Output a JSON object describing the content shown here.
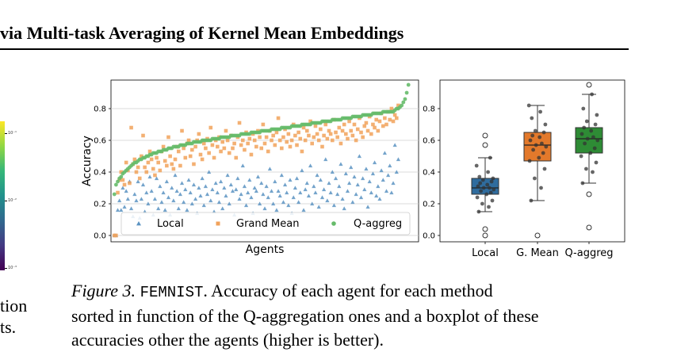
{
  "header": {
    "running_title": "via Multi-task Averaging of Kernel Mean Embeddings"
  },
  "left_column": {
    "colorbar_ticks": [
      "10⁻¹",
      "10⁻²",
      "10⁻³"
    ],
    "text_fragments": [
      "tion",
      "ts."
    ]
  },
  "colors": {
    "local": "#5b93c2",
    "grand_mean": "#f1a25b",
    "q_aggreg": "#66bb6a",
    "box_local": "#2f6c9e",
    "box_grand_mean": "#e3792b",
    "box_q_aggreg": "#2e8b35"
  },
  "caption": {
    "label": "Figure 3.",
    "dataset": "FEMNIST",
    "line1_rest": ". Accuracy of each agent for each method",
    "line2": "sorted in function of the Q-aggregation ones and a boxplot of these",
    "line3": "accuracies other the agents (higher is better)."
  },
  "chart_data": [
    {
      "type": "scatter",
      "title": "",
      "xlabel": "Agents",
      "ylabel": "Accuracy",
      "ylim": [
        -0.04,
        0.98
      ],
      "xlim": [
        -2,
        180
      ],
      "yticks": [
        "0.0",
        "0.2",
        "0.4",
        "0.6",
        "0.8"
      ],
      "ytick_values": [
        0.0,
        0.2,
        0.4,
        0.6,
        0.8
      ],
      "grid": "horizontal",
      "legend_position": "bottom",
      "series": [
        {
          "name": "Local",
          "marker": "triangle",
          "values": [
            0.0,
            0.0,
            0.16,
            0.22,
            0.16,
            0.3,
            0.18,
            0.28,
            0.23,
            0.34,
            0.17,
            0.12,
            0.26,
            0.22,
            0.34,
            0.11,
            0.23,
            0.32,
            0.15,
            0.27,
            0.2,
            0.37,
            0.28,
            0.13,
            0.23,
            0.36,
            0.17,
            0.31,
            0.21,
            0.27,
            0.16,
            0.34,
            0.24,
            0.13,
            0.3,
            0.22,
            0.38,
            0.28,
            0.17,
            0.26,
            0.33,
            0.21,
            0.29,
            0.16,
            0.35,
            0.27,
            0.2,
            0.32,
            0.23,
            0.14,
            0.3,
            0.25,
            0.36,
            0.19,
            0.31,
            0.26,
            0.4,
            0.22,
            0.29,
            0.15,
            0.33,
            0.27,
            0.21,
            0.34,
            0.17,
            0.3,
            0.25,
            0.38,
            0.2,
            0.32,
            0.28,
            0.13,
            0.29,
            0.36,
            0.23,
            0.26,
            0.44,
            0.31,
            0.19,
            0.27,
            0.35,
            0.24,
            0.14,
            0.3,
            0.28,
            0.37,
            0.2,
            0.33,
            0.26,
            0.17,
            0.31,
            0.24,
            0.42,
            0.28,
            0.2,
            0.34,
            0.16,
            0.28,
            0.25,
            0.38,
            0.21,
            0.32,
            0.27,
            0.19,
            0.35,
            0.14,
            0.24,
            0.3,
            0.36,
            0.21,
            0.27,
            0.41,
            0.16,
            0.29,
            0.33,
            0.25,
            0.44,
            0.2,
            0.31,
            0.27,
            0.38,
            0.18,
            0.35,
            0.24,
            0.29,
            0.48,
            0.22,
            0.33,
            0.27,
            0.4,
            0.19,
            0.36,
            0.26,
            0.31,
            0.45,
            0.23,
            0.17,
            0.39,
            0.28,
            0.33,
            0.43,
            0.21,
            0.37,
            0.26,
            0.32,
            0.5,
            0.24,
            0.36,
            0.29,
            0.42,
            0.18,
            0.34,
            0.27,
            0.39,
            0.46,
            0.25,
            0.31,
            0.23,
            0.41,
            0.35,
            0.52,
            0.28,
            0.38,
            0.44,
            0.27,
            0.33,
            0.57,
            0.4,
            0.48
          ]
        },
        {
          "name": "Grand Mean",
          "marker": "square",
          "values": [
            0.0,
            0.0,
            0.27,
            0.35,
            0.4,
            0.35,
            0.32,
            0.46,
            0.41,
            0.33,
            0.68,
            0.45,
            0.48,
            0.4,
            0.43,
            0.36,
            0.5,
            0.63,
            0.43,
            0.4,
            0.46,
            0.53,
            0.48,
            0.42,
            0.38,
            0.49,
            0.46,
            0.41,
            0.53,
            0.56,
            0.47,
            0.44,
            0.62,
            0.5,
            0.45,
            0.42,
            0.48,
            0.56,
            0.53,
            0.44,
            0.66,
            0.55,
            0.49,
            0.58,
            0.6,
            0.5,
            0.54,
            0.45,
            0.56,
            0.6,
            0.64,
            0.51,
            0.48,
            0.58,
            0.55,
            0.61,
            0.52,
            0.68,
            0.57,
            0.49,
            0.6,
            0.56,
            0.62,
            0.53,
            0.59,
            0.55,
            0.66,
            0.6,
            0.52,
            0.63,
            0.55,
            0.58,
            0.49,
            0.62,
            0.71,
            0.57,
            0.6,
            0.54,
            0.65,
            0.58,
            0.61,
            0.51,
            0.64,
            0.6,
            0.56,
            0.66,
            0.62,
            0.55,
            0.7,
            0.58,
            0.62,
            0.53,
            0.66,
            0.6,
            0.63,
            0.57,
            0.65,
            0.74,
            0.6,
            0.55,
            0.62,
            0.67,
            0.59,
            0.64,
            0.56,
            0.6,
            0.7,
            0.63,
            0.57,
            0.65,
            0.61,
            0.53,
            0.68,
            0.6,
            0.66,
            0.63,
            0.72,
            0.58,
            0.62,
            0.69,
            0.64,
            0.6,
            0.67,
            0.56,
            0.63,
            0.7,
            0.61,
            0.66,
            0.64,
            0.6,
            0.73,
            0.65,
            0.62,
            0.68,
            0.58,
            0.66,
            0.7,
            0.64,
            0.61,
            0.72,
            0.66,
            0.63,
            0.7,
            0.6,
            0.67,
            0.74,
            0.65,
            0.62,
            0.69,
            0.71,
            0.66,
            0.75,
            0.64,
            0.7,
            0.68,
            0.73,
            0.66,
            0.72,
            0.77,
            0.69,
            0.74,
            0.7,
            0.78,
            0.73,
            0.8,
            0.72,
            0.76,
            0.74,
            0.82
          ]
        },
        {
          "name": "Q-aggreg",
          "marker": "circle",
          "values": [
            0.26,
            0.32,
            0.34,
            0.36,
            0.37,
            0.39,
            0.4,
            0.41,
            0.42,
            0.43,
            0.44,
            0.45,
            0.46,
            0.46,
            0.47,
            0.48,
            0.48,
            0.49,
            0.49,
            0.5,
            0.5,
            0.51,
            0.51,
            0.52,
            0.52,
            0.52,
            0.53,
            0.53,
            0.53,
            0.54,
            0.54,
            0.54,
            0.55,
            0.55,
            0.55,
            0.56,
            0.56,
            0.56,
            0.56,
            0.57,
            0.57,
            0.57,
            0.57,
            0.58,
            0.58,
            0.58,
            0.58,
            0.59,
            0.59,
            0.59,
            0.59,
            0.59,
            0.6,
            0.6,
            0.6,
            0.6,
            0.6,
            0.6,
            0.61,
            0.61,
            0.61,
            0.61,
            0.61,
            0.62,
            0.62,
            0.62,
            0.62,
            0.62,
            0.62,
            0.63,
            0.63,
            0.63,
            0.63,
            0.63,
            0.63,
            0.64,
            0.64,
            0.64,
            0.64,
            0.64,
            0.64,
            0.65,
            0.65,
            0.65,
            0.65,
            0.65,
            0.65,
            0.66,
            0.66,
            0.66,
            0.66,
            0.66,
            0.66,
            0.67,
            0.67,
            0.67,
            0.67,
            0.67,
            0.67,
            0.68,
            0.68,
            0.68,
            0.68,
            0.68,
            0.68,
            0.69,
            0.69,
            0.69,
            0.69,
            0.69,
            0.69,
            0.7,
            0.7,
            0.7,
            0.7,
            0.7,
            0.7,
            0.71,
            0.71,
            0.71,
            0.71,
            0.71,
            0.71,
            0.72,
            0.72,
            0.72,
            0.72,
            0.72,
            0.72,
            0.73,
            0.73,
            0.73,
            0.73,
            0.73,
            0.73,
            0.74,
            0.74,
            0.74,
            0.74,
            0.74,
            0.74,
            0.75,
            0.75,
            0.75,
            0.75,
            0.75,
            0.75,
            0.76,
            0.76,
            0.76,
            0.76,
            0.76,
            0.76,
            0.77,
            0.77,
            0.77,
            0.77,
            0.77,
            0.77,
            0.78,
            0.78,
            0.78,
            0.78,
            0.78,
            0.78,
            0.78,
            0.79,
            0.8,
            0.8,
            0.81,
            0.82,
            0.84,
            0.86,
            0.9,
            0.95
          ]
        }
      ]
    },
    {
      "type": "box",
      "title": "",
      "xlabel": "",
      "ylabel": "",
      "ylim": [
        -0.04,
        0.98
      ],
      "yticks": [
        "0.0",
        "0.2",
        "0.4",
        "0.6",
        "0.8"
      ],
      "ytick_values": [
        0.0,
        0.2,
        0.4,
        0.6,
        0.8
      ],
      "categories": [
        "Local",
        "G. Mean",
        "Q-aggreg"
      ],
      "boxes": [
        {
          "whisker_low": 0.15,
          "q1": 0.26,
          "median": 0.3,
          "q3": 0.36,
          "whisker_high": 0.49,
          "outliers": [
            0.0,
            0.04,
            0.57,
            0.63
          ]
        },
        {
          "whisker_low": 0.22,
          "q1": 0.47,
          "median": 0.57,
          "q3": 0.65,
          "whisker_high": 0.82,
          "outliers": [
            0.0
          ]
        },
        {
          "whisker_low": 0.33,
          "q1": 0.52,
          "median": 0.61,
          "q3": 0.68,
          "whisker_high": 0.89,
          "outliers": [
            0.05,
            0.26,
            0.95
          ]
        }
      ],
      "points": [
        [
          0.15,
          0.18,
          0.2,
          0.22,
          0.24,
          0.26,
          0.27,
          0.28,
          0.29,
          0.3,
          0.3,
          0.31,
          0.32,
          0.33,
          0.34,
          0.35,
          0.36,
          0.37,
          0.4,
          0.44,
          0.49,
          0.0,
          0.04,
          0.57,
          0.63
        ],
        [
          0.22,
          0.3,
          0.36,
          0.42,
          0.47,
          0.49,
          0.52,
          0.54,
          0.56,
          0.57,
          0.58,
          0.6,
          0.62,
          0.63,
          0.65,
          0.66,
          0.7,
          0.74,
          0.78,
          0.82,
          0.0
        ],
        [
          0.33,
          0.4,
          0.42,
          0.46,
          0.5,
          0.52,
          0.55,
          0.58,
          0.6,
          0.61,
          0.62,
          0.64,
          0.66,
          0.68,
          0.7,
          0.72,
          0.76,
          0.8,
          0.89,
          0.05,
          0.26,
          0.95
        ]
      ]
    }
  ]
}
